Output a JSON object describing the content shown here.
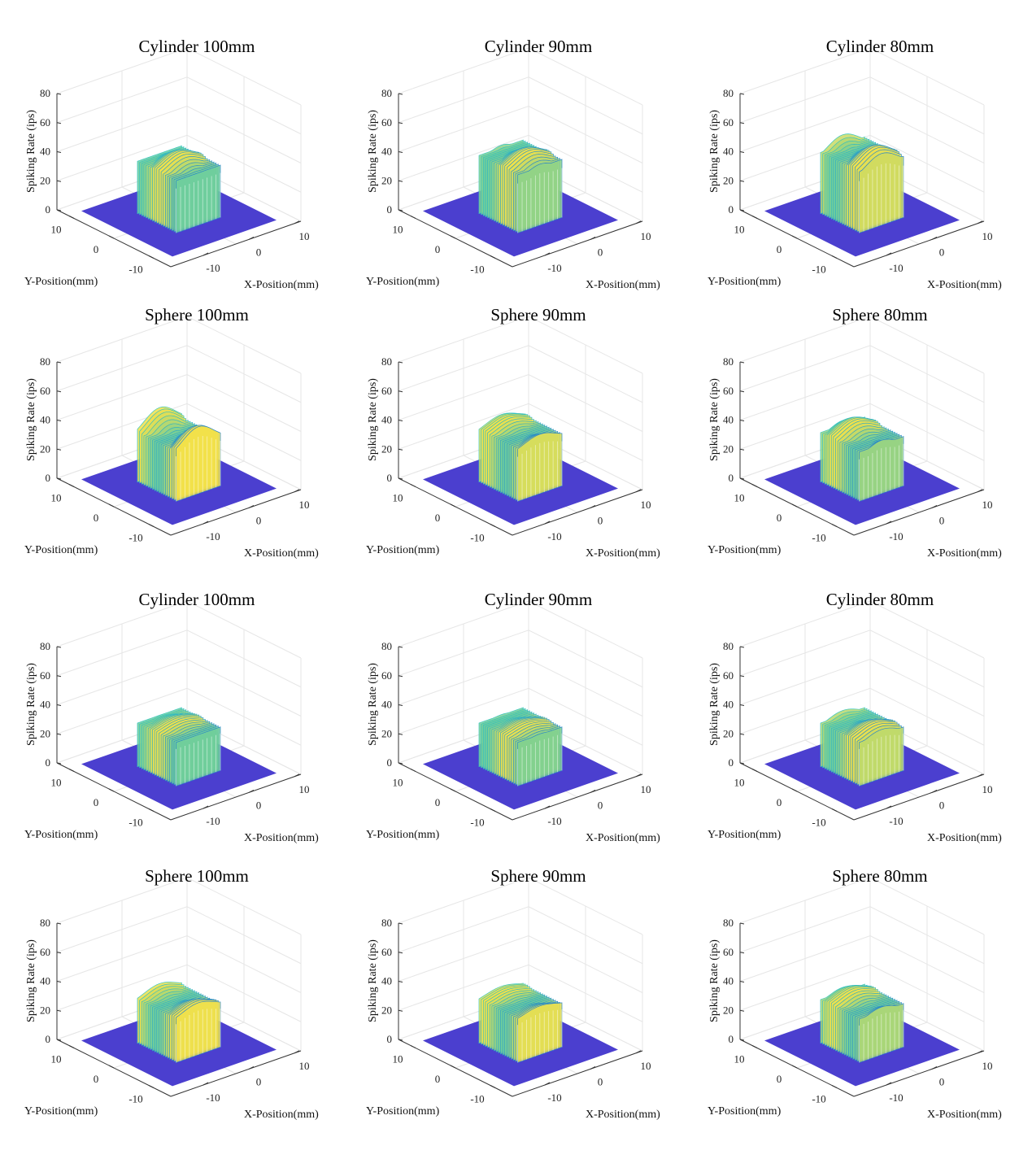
{
  "figure": {
    "accent_colors": {
      "floor": "#4b3fcf",
      "wire_low": "#2a86c7",
      "wire_mid": "#35c6c0",
      "wire_high": "#f2e04a"
    },
    "chart_data": [
      {
        "type": "surface",
        "title": "Cylinder 100mm",
        "xlabel": "X-Position(mm)",
        "ylabel": "Y-Position(mm)",
        "zlabel": "Spiking Rate (ips)",
        "xticks": [
          "-10",
          "0",
          "10"
        ],
        "yticks": [
          "10",
          "0",
          "-10"
        ],
        "zticks": [
          "0",
          "20",
          "40",
          "60",
          "80"
        ],
        "zlim": [
          0,
          80
        ],
        "peak_z": 44,
        "plateau_z": 36
      },
      {
        "type": "surface",
        "title": "Cylinder 90mm",
        "xlabel": "X-Position(mm)",
        "ylabel": "Y-Position(mm)",
        "zlabel": "Spiking Rate (ips)",
        "xticks": [
          "-10",
          "0",
          "10"
        ],
        "yticks": [
          "10",
          "0",
          "-10"
        ],
        "zticks": [
          "0",
          "20",
          "40",
          "60",
          "80"
        ],
        "zlim": [
          0,
          80
        ],
        "peak_z": 48,
        "plateau_z": 40
      },
      {
        "type": "surface",
        "title": "Cylinder 80mm",
        "xlabel": "X-Position(mm)",
        "ylabel": "Y-Position(mm)",
        "zlabel": "Spiking Rate (ips)",
        "xticks": [
          "-10",
          "0",
          "10"
        ],
        "yticks": [
          "10",
          "0",
          "-10"
        ],
        "zticks": [
          "0",
          "20",
          "40",
          "60",
          "80"
        ],
        "zlim": [
          0,
          80
        ],
        "peak_z": 52,
        "plateau_z": 42
      },
      {
        "type": "surface",
        "title": "Sphere 100mm",
        "xlabel": "X-Position(mm)",
        "ylabel": "Y-Position(mm)",
        "zlabel": "Spiking Rate (ips)",
        "xticks": [
          "-10",
          "0",
          "10"
        ],
        "yticks": [
          "10",
          "0",
          "-10"
        ],
        "zticks": [
          "0",
          "20",
          "40",
          "60",
          "80"
        ],
        "zlim": [
          0,
          80
        ],
        "peak_z": 46,
        "plateau_z": 34
      },
      {
        "type": "surface",
        "title": "Sphere 90mm",
        "xlabel": "X-Position(mm)",
        "ylabel": "Y-Position(mm)",
        "zlabel": "Spiking Rate (ips)",
        "xticks": [
          "-10",
          "0",
          "10"
        ],
        "yticks": [
          "10",
          "0",
          "-10"
        ],
        "zticks": [
          "0",
          "20",
          "40",
          "60",
          "80"
        ],
        "zlim": [
          0,
          80
        ],
        "peak_z": 42,
        "plateau_z": 36
      },
      {
        "type": "surface",
        "title": "Sphere 80mm",
        "xlabel": "X-Position(mm)",
        "ylabel": "Y-Position(mm)",
        "zlabel": "Spiking Rate (ips)",
        "xticks": [
          "-10",
          "0",
          "10"
        ],
        "yticks": [
          "10",
          "0",
          "-10"
        ],
        "zticks": [
          "0",
          "20",
          "40",
          "60",
          "80"
        ],
        "zlim": [
          0,
          80
        ],
        "peak_z": 42,
        "plateau_z": 34
      },
      {
        "type": "surface",
        "title": "Cylinder 100mm",
        "xlabel": "X-Position(mm)",
        "ylabel": "Y-Position(mm)",
        "zlabel": "Spiking Rate (ips)",
        "xticks": [
          "-10",
          "0",
          "10"
        ],
        "yticks": [
          "10",
          "0",
          "-10"
        ],
        "zticks": [
          "0",
          "20",
          "40",
          "60",
          "80"
        ],
        "zlim": [
          0,
          80
        ],
        "peak_z": 34,
        "plateau_z": 30
      },
      {
        "type": "surface",
        "title": "Cylinder 90mm",
        "xlabel": "X-Position(mm)",
        "ylabel": "Y-Position(mm)",
        "zlabel": "Spiking Rate (ips)",
        "xticks": [
          "-10",
          "0",
          "10"
        ],
        "yticks": [
          "10",
          "0",
          "-10"
        ],
        "zticks": [
          "0",
          "20",
          "40",
          "60",
          "80"
        ],
        "zlim": [
          0,
          80
        ],
        "peak_z": 34,
        "plateau_z": 30
      },
      {
        "type": "surface",
        "title": "Cylinder 80mm",
        "xlabel": "X-Position(mm)",
        "ylabel": "Y-Position(mm)",
        "zlabel": "Spiking Rate (ips)",
        "xticks": [
          "-10",
          "0",
          "10"
        ],
        "yticks": [
          "10",
          "0",
          "-10"
        ],
        "zticks": [
          "0",
          "20",
          "40",
          "60",
          "80"
        ],
        "zlim": [
          0,
          80
        ],
        "peak_z": 36,
        "plateau_z": 30
      },
      {
        "type": "surface",
        "title": "Sphere 100mm",
        "xlabel": "X-Position(mm)",
        "ylabel": "Y-Position(mm)",
        "zlabel": "Spiking Rate (ips)",
        "xticks": [
          "-10",
          "0",
          "10"
        ],
        "yticks": [
          "10",
          "0",
          "-10"
        ],
        "zticks": [
          "0",
          "20",
          "40",
          "60",
          "80"
        ],
        "zlim": [
          0,
          80
        ],
        "peak_z": 36,
        "plateau_z": 30
      },
      {
        "type": "surface",
        "title": "Sphere 90mm",
        "xlabel": "X-Position(mm)",
        "ylabel": "Y-Position(mm)",
        "zlabel": "Spiking Rate (ips)",
        "xticks": [
          "-10",
          "0",
          "10"
        ],
        "yticks": [
          "10",
          "0",
          "-10"
        ],
        "zticks": [
          "0",
          "20",
          "40",
          "60",
          "80"
        ],
        "zlim": [
          0,
          80
        ],
        "peak_z": 34,
        "plateau_z": 30
      },
      {
        "type": "surface",
        "title": "Sphere 80mm",
        "xlabel": "X-Position(mm)",
        "ylabel": "Y-Position(mm)",
        "zlabel": "Spiking Rate (ips)",
        "xticks": [
          "-10",
          "0",
          "10"
        ],
        "yticks": [
          "10",
          "0",
          "-10"
        ],
        "zticks": [
          "0",
          "20",
          "40",
          "60",
          "80"
        ],
        "zlim": [
          0,
          80
        ],
        "peak_z": 36,
        "plateau_z": 30
      }
    ]
  }
}
